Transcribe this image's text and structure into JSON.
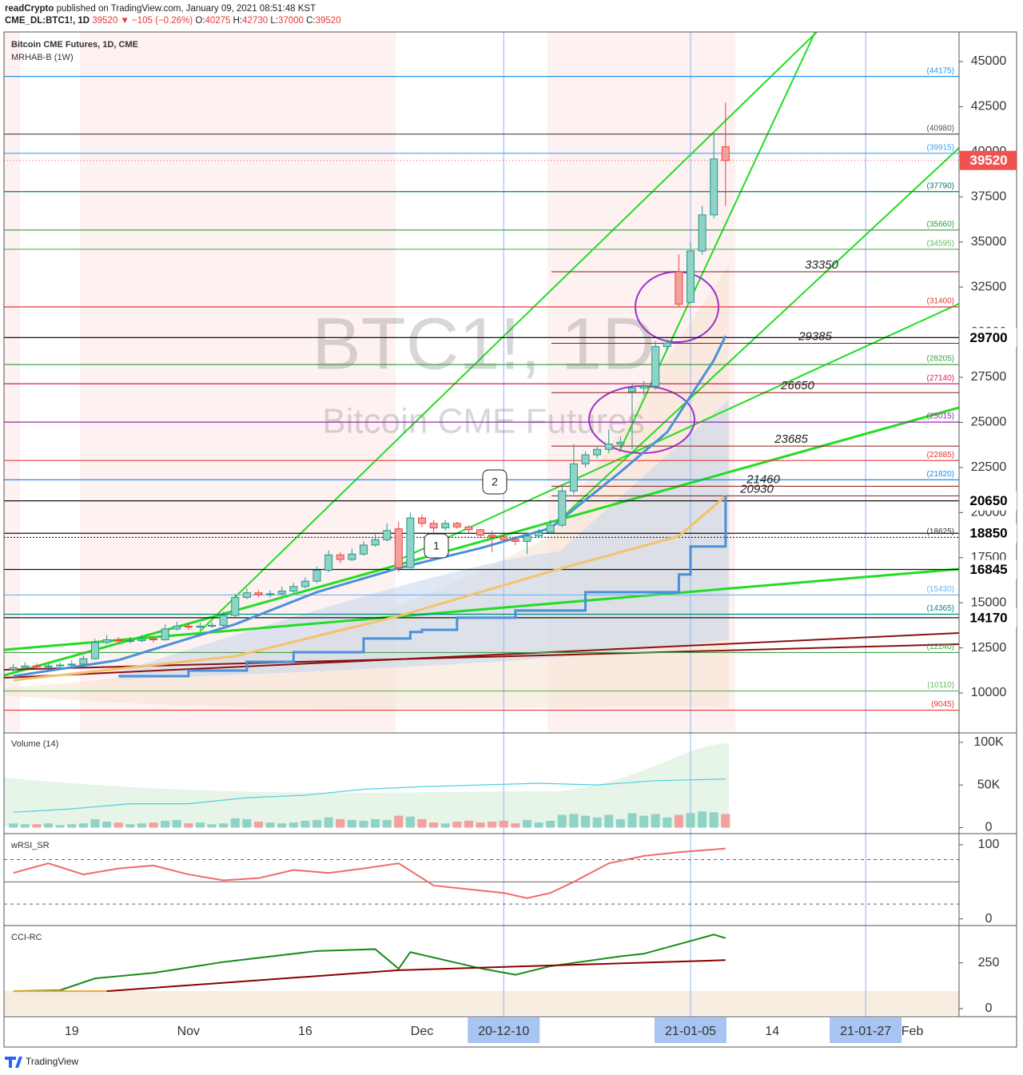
{
  "header": {
    "author": "readCrypto",
    "published": "published on TradingView.com, January 09, 2021 08:51:48 KST",
    "symbol": "CME_DL:BTC1!, 1D",
    "price": "39520",
    "change": "▼ −105 (−0.26%)",
    "ohlc": [
      {
        "label": "O:",
        "value": "40275"
      },
      {
        "label": "H:",
        "value": "42730"
      },
      {
        "label": "L:",
        "value": "37000"
      },
      {
        "label": "C:",
        "value": "39520"
      }
    ]
  },
  "footer": {
    "brand": "TradingView"
  },
  "annotations": [
    "1",
    "2"
  ],
  "chart_data": [
    {
      "type": "candlestick",
      "title": "Bitcoin CME Futures, 1D, CME",
      "subtitle": "MRHAB-B (1W)",
      "watermark": [
        "BTC1!, 1D",
        "Bitcoin CME Futures"
      ],
      "xlim": [
        -0.8,
        81
      ],
      "xticks": [
        {
          "value": 5,
          "label": "19"
        },
        {
          "value": 15,
          "label": "Nov"
        },
        {
          "value": 25,
          "label": "16"
        },
        {
          "value": 35,
          "label": "Dec"
        },
        {
          "value": 42,
          "label": "20-12-10"
        },
        {
          "value": 58,
          "label": "21-01-05"
        },
        {
          "value": 65,
          "label": "14"
        },
        {
          "value": 73,
          "label": "21-01-27"
        },
        {
          "value": 77,
          "label": "Feb"
        }
      ],
      "highlighted_xticks": [
        4,
        5,
        7
      ],
      "ylim": [
        7830,
        46640
      ],
      "yticks": [
        45000,
        42500,
        40000,
        37500,
        35000,
        32500,
        30000,
        27500,
        25000,
        22500,
        20000,
        17500,
        15000,
        12500,
        10000
      ],
      "up_color": "#1f9a87",
      "up_fill": "#8fd3c6",
      "down_color": "#e8453c",
      "down_fill": "#f4a09e",
      "open": [
        11300,
        11400,
        11500,
        11450,
        11500,
        11550,
        11600,
        11900,
        12800,
        12950,
        12900,
        12900,
        13000,
        12950,
        13550,
        13700,
        13650,
        13700,
        13750,
        14300,
        15300,
        15550,
        15450,
        15500,
        15650,
        15900,
        16200,
        16800,
        17650,
        17400,
        17700,
        18200,
        18500,
        19100,
        16950,
        19700,
        19400,
        19150,
        19400,
        19200,
        19050,
        18750,
        18650,
        18500,
        18400,
        18700,
        18900,
        19300,
        21200,
        22700,
        23200,
        23500,
        23800,
        26700,
        26900,
        27000,
        29200,
        33350,
        31650,
        34500,
        36500,
        40275
      ],
      "high": [
        11600,
        11700,
        11650,
        11650,
        11700,
        11800,
        12100,
        13000,
        13200,
        13100,
        13100,
        13200,
        13150,
        13800,
        13950,
        13900,
        13900,
        13950,
        14500,
        15500,
        15800,
        15700,
        15700,
        15900,
        16100,
        16400,
        17000,
        17900,
        17800,
        18000,
        18400,
        18800,
        19400,
        19500,
        20000,
        19900,
        19600,
        19600,
        19500,
        19300,
        19100,
        19000,
        18800,
        18700,
        18900,
        19100,
        19600,
        21500,
        23800,
        23400,
        23700,
        24600,
        24200,
        27200,
        27300,
        29500,
        29600,
        34300,
        35000,
        37000,
        41000,
        42730
      ],
      "low": [
        11200,
        11300,
        11350,
        11350,
        11400,
        11450,
        11550,
        11850,
        12700,
        12750,
        12750,
        12800,
        12800,
        12900,
        13450,
        13500,
        13550,
        13600,
        13650,
        14200,
        15200,
        15300,
        15300,
        15400,
        15550,
        15800,
        16100,
        16700,
        17200,
        17300,
        17600,
        18100,
        18400,
        16700,
        16900,
        19200,
        18900,
        19000,
        19100,
        18900,
        18600,
        17800,
        18400,
        18200,
        17700,
        18600,
        18800,
        19200,
        21000,
        22500,
        23000,
        23300,
        23600,
        23500,
        26500,
        26800,
        29000,
        31400,
        31600,
        34300,
        36300,
        37000
      ],
      "close": [
        11400,
        11500,
        11450,
        11500,
        11550,
        11600,
        11900,
        12800,
        12950,
        12900,
        12900,
        13000,
        12950,
        13550,
        13700,
        13650,
        13700,
        13750,
        14300,
        15300,
        15550,
        15450,
        15500,
        15650,
        15900,
        16200,
        16800,
        17650,
        17400,
        17700,
        18200,
        18500,
        19000,
        16950,
        19700,
        19400,
        19150,
        19400,
        19200,
        19050,
        18750,
        18650,
        18500,
        18400,
        18700,
        18900,
        19300,
        21200,
        22700,
        23200,
        23500,
        23800,
        23900,
        26900,
        27000,
        29200,
        29400,
        31550,
        34500,
        36500,
        39600,
        39520
      ],
      "overlays": [
        {
          "color": "#f5c26b",
          "x": [
            0,
            19,
            33,
            47,
            57,
            61
          ],
          "values": [
            10710,
            12040,
            14260,
            16920,
            18690,
            20910
          ]
        },
        {
          "color": "#4a90d9",
          "x": [
            0,
            9,
            19,
            26,
            33,
            40,
            46,
            52,
            56,
            60,
            61
          ],
          "values": [
            10930,
            11820,
            13810,
            15590,
            16920,
            18030,
            19140,
            22250,
            24460,
            28450,
            29790
          ]
        },
        {
          "color": "#4a90d9",
          "step": true,
          "x": [
            9,
            15,
            20,
            24,
            30,
            34,
            35,
            38,
            43,
            48,
            49,
            52,
            57,
            58,
            61
          ],
          "values": [
            10930,
            11240,
            11730,
            12260,
            13020,
            13380,
            13500,
            14170,
            14570,
            14570,
            15590,
            15590,
            16570,
            18120,
            20910
          ]
        }
      ],
      "levels": [
        {
          "value": 44175,
          "label": "(44175)",
          "color": "#2196f3"
        },
        {
          "value": 40980,
          "label": "(40980)",
          "color": "#555555"
        },
        {
          "value": 39915,
          "label": "(39915)",
          "color": "#42a5f5"
        },
        {
          "value": 37790,
          "label": "(37790)",
          "color": "#00796b"
        },
        {
          "value": 35660,
          "label": "(35660)",
          "color": "#2e9d3a"
        },
        {
          "value": 34595,
          "label": "(34595)",
          "color": "#66bb6a"
        },
        {
          "value": 31400,
          "label": "(31400)",
          "color": "#e53935"
        },
        {
          "value": 28205,
          "label": "(28205)",
          "color": "#43a047"
        },
        {
          "value": 27140,
          "label": "(27140)",
          "color": "#d81b60"
        },
        {
          "value": 25015,
          "label": "(25015)",
          "color": "#9c27b0"
        },
        {
          "value": 22885,
          "label": "(22885)",
          "color": "#e53935"
        },
        {
          "value": 21820,
          "label": "(21820)",
          "color": "#1e88e5"
        },
        {
          "value": 18625,
          "label": "(18625)",
          "color": "#333333",
          "dash": true
        },
        {
          "value": 15430,
          "label": "(15430)",
          "color": "#64b5f6"
        },
        {
          "value": 14365,
          "label": "(14365)",
          "color": "#00897b"
        },
        {
          "value": 12240,
          "label": "(12240)",
          "color": "#43a047"
        },
        {
          "value": 10110,
          "label": "(10110)",
          "color": "#66bb6a"
        },
        {
          "value": 9045,
          "label": "(9045)",
          "color": "#e53935"
        }
      ],
      "price_lines": [
        33350,
        29385,
        26650,
        23685,
        21460,
        20930
      ],
      "price_line_color": "#8b1a1a",
      "price_tags": [
        29700,
        20650,
        18850,
        16845,
        14170
      ],
      "last_price": 39520,
      "last_price_color": "#ef5350"
    },
    {
      "type": "bar",
      "title": "Volume (14)",
      "ylim": [
        -7000,
        111000
      ],
      "yticks": [
        {
          "value": 100000,
          "label": "100K"
        },
        {
          "value": 50000,
          "label": "50K"
        },
        0
      ],
      "up_color": "#8fd3c6",
      "down_color": "#f4a09e",
      "values": [
        5000,
        4000,
        4000,
        5000,
        3000,
        4000,
        5000,
        10000,
        7000,
        6000,
        4000,
        5000,
        6000,
        8000,
        9000,
        5000,
        6000,
        4000,
        5000,
        11000,
        10000,
        7000,
        6000,
        5000,
        6000,
        8000,
        9000,
        12000,
        10000,
        9000,
        8000,
        10000,
        9000,
        14000,
        13000,
        10000,
        6000,
        5000,
        7000,
        8000,
        6000,
        7000,
        8000,
        5000,
        9000,
        6000,
        8000,
        15000,
        16000,
        14000,
        12000,
        15000,
        10000,
        17000,
        14000,
        16000,
        12000,
        15000,
        17000,
        19000,
        18000,
        16000
      ],
      "ma": {
        "color": "#4dd0e1",
        "x": [
          0,
          5,
          10,
          15,
          20,
          25,
          30,
          35,
          40,
          45,
          50,
          55,
          61
        ],
        "values": [
          18000,
          22000,
          28000,
          28000,
          35000,
          38000,
          45000,
          48000,
          50000,
          52000,
          50000,
          55000,
          57000
        ]
      }
    },
    {
      "type": "line",
      "title": "wRSI_SR",
      "ylim": [
        -9,
        114
      ],
      "yticks": [
        100,
        0
      ],
      "hlines": [
        {
          "value": 80,
          "dash": true
        },
        {
          "value": 50,
          "dash": false
        },
        {
          "value": 20,
          "dash": true
        }
      ],
      "series": [
        {
          "color": "#f06a6a",
          "x": [
            0,
            3,
            6,
            9,
            12,
            15,
            18,
            21,
            24,
            27,
            30,
            33,
            36,
            39,
            42,
            44,
            46,
            48,
            51,
            54,
            57,
            61
          ],
          "values": [
            62,
            75,
            60,
            68,
            72,
            60,
            52,
            55,
            66,
            62,
            68,
            75,
            45,
            40,
            35,
            28,
            35,
            50,
            75,
            85,
            90,
            95
          ]
        }
      ]
    },
    {
      "type": "line",
      "title": "CCI-RC",
      "ylim": [
        -40,
        450
      ],
      "yticks": [
        250,
        0
      ],
      "series": [
        {
          "color": "#1b8a1b",
          "x": [
            0,
            4,
            7,
            12,
            18,
            26,
            31,
            33,
            34,
            40,
            43,
            46,
            52,
            54,
            58,
            60,
            61
          ],
          "values": [
            95,
            100,
            165,
            195,
            255,
            315,
            325,
            218,
            309,
            220,
            185,
            232,
            286,
            300,
            370,
            405,
            385
          ]
        },
        {
          "color": "#f5a623",
          "x": [
            0,
            8
          ],
          "values": [
            95,
            95
          ]
        },
        {
          "color": "#8b0000",
          "x": [
            8,
            33,
            61
          ],
          "values": [
            95,
            210,
            265
          ]
        }
      ]
    }
  ]
}
